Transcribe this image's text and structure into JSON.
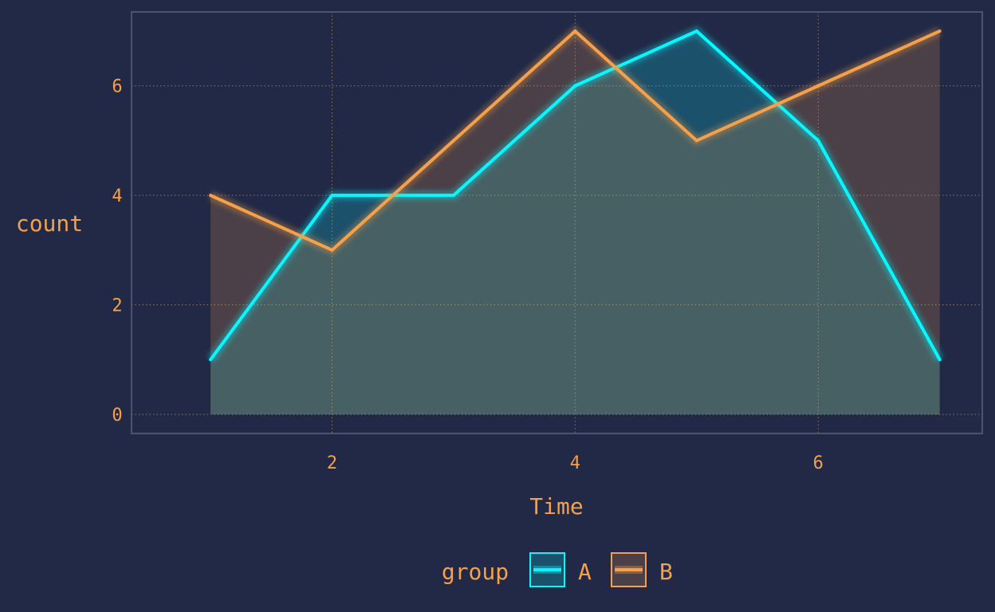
{
  "chart_data": {
    "type": "area",
    "x": [
      1,
      2,
      3,
      4,
      5,
      6,
      7
    ],
    "series": [
      {
        "name": "A",
        "values": [
          1,
          4,
          4,
          6,
          7,
          5,
          1
        ],
        "color": "#08F7FE"
      },
      {
        "name": "B",
        "values": [
          4,
          3,
          5,
          7,
          5,
          6,
          7
        ],
        "color": "#F5A04A"
      }
    ],
    "xlabel": "Time",
    "ylabel": "count",
    "xlim": [
      0.35,
      7.35
    ],
    "ylim": [
      -0.35,
      7.35
    ],
    "x_ticks": [
      2,
      4,
      6
    ],
    "y_ticks": [
      0,
      2,
      4,
      6
    ],
    "grid": true,
    "legend": {
      "title": "group",
      "placement": "bottom"
    },
    "colors": {
      "background": "#212946",
      "grid": "#8A7A5A",
      "panel_border": "#4A5470",
      "text": "#F5A04A"
    }
  }
}
